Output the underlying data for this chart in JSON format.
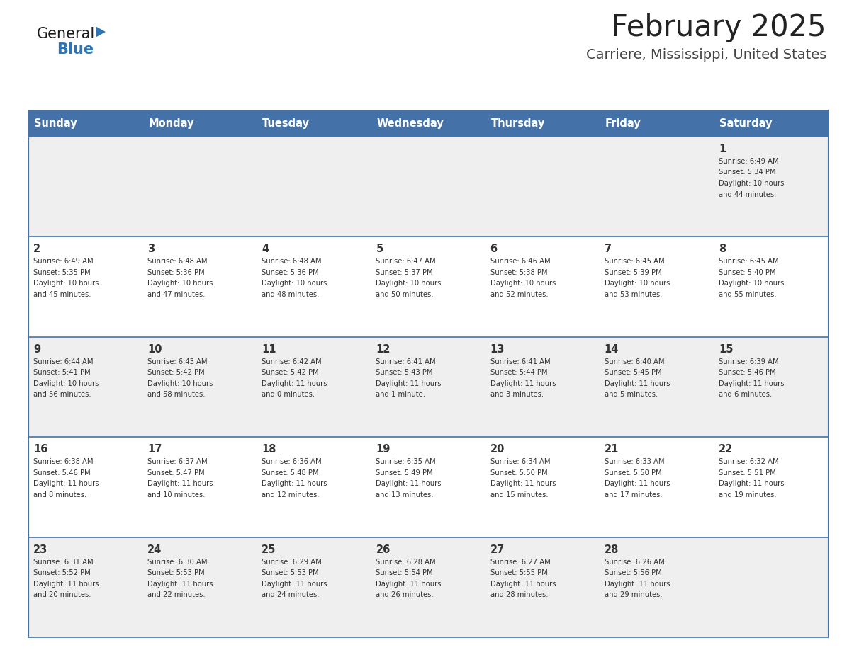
{
  "title": "February 2025",
  "subtitle": "Carriere, Mississippi, United States",
  "days_of_week": [
    "Sunday",
    "Monday",
    "Tuesday",
    "Wednesday",
    "Thursday",
    "Friday",
    "Saturday"
  ],
  "header_bg": "#4472a8",
  "header_text_color": "#ffffff",
  "row_bg_even": "#efefef",
  "row_bg_odd": "#ffffff",
  "separator_color": "#4472a8",
  "text_color": "#333333",
  "day_num_color": "#333333",
  "calendar": [
    [
      null,
      null,
      null,
      null,
      null,
      null,
      {
        "day": 1,
        "sunrise": "6:49 AM",
        "sunset": "5:34 PM",
        "daylight_line1": "Daylight: 10 hours",
        "daylight_line2": "and 44 minutes."
      }
    ],
    [
      {
        "day": 2,
        "sunrise": "6:49 AM",
        "sunset": "5:35 PM",
        "daylight_line1": "Daylight: 10 hours",
        "daylight_line2": "and 45 minutes."
      },
      {
        "day": 3,
        "sunrise": "6:48 AM",
        "sunset": "5:36 PM",
        "daylight_line1": "Daylight: 10 hours",
        "daylight_line2": "and 47 minutes."
      },
      {
        "day": 4,
        "sunrise": "6:48 AM",
        "sunset": "5:36 PM",
        "daylight_line1": "Daylight: 10 hours",
        "daylight_line2": "and 48 minutes."
      },
      {
        "day": 5,
        "sunrise": "6:47 AM",
        "sunset": "5:37 PM",
        "daylight_line1": "Daylight: 10 hours",
        "daylight_line2": "and 50 minutes."
      },
      {
        "day": 6,
        "sunrise": "6:46 AM",
        "sunset": "5:38 PM",
        "daylight_line1": "Daylight: 10 hours",
        "daylight_line2": "and 52 minutes."
      },
      {
        "day": 7,
        "sunrise": "6:45 AM",
        "sunset": "5:39 PM",
        "daylight_line1": "Daylight: 10 hours",
        "daylight_line2": "and 53 minutes."
      },
      {
        "day": 8,
        "sunrise": "6:45 AM",
        "sunset": "5:40 PM",
        "daylight_line1": "Daylight: 10 hours",
        "daylight_line2": "and 55 minutes."
      }
    ],
    [
      {
        "day": 9,
        "sunrise": "6:44 AM",
        "sunset": "5:41 PM",
        "daylight_line1": "Daylight: 10 hours",
        "daylight_line2": "and 56 minutes."
      },
      {
        "day": 10,
        "sunrise": "6:43 AM",
        "sunset": "5:42 PM",
        "daylight_line1": "Daylight: 10 hours",
        "daylight_line2": "and 58 minutes."
      },
      {
        "day": 11,
        "sunrise": "6:42 AM",
        "sunset": "5:42 PM",
        "daylight_line1": "Daylight: 11 hours",
        "daylight_line2": "and 0 minutes."
      },
      {
        "day": 12,
        "sunrise": "6:41 AM",
        "sunset": "5:43 PM",
        "daylight_line1": "Daylight: 11 hours",
        "daylight_line2": "and 1 minute."
      },
      {
        "day": 13,
        "sunrise": "6:41 AM",
        "sunset": "5:44 PM",
        "daylight_line1": "Daylight: 11 hours",
        "daylight_line2": "and 3 minutes."
      },
      {
        "day": 14,
        "sunrise": "6:40 AM",
        "sunset": "5:45 PM",
        "daylight_line1": "Daylight: 11 hours",
        "daylight_line2": "and 5 minutes."
      },
      {
        "day": 15,
        "sunrise": "6:39 AM",
        "sunset": "5:46 PM",
        "daylight_line1": "Daylight: 11 hours",
        "daylight_line2": "and 6 minutes."
      }
    ],
    [
      {
        "day": 16,
        "sunrise": "6:38 AM",
        "sunset": "5:46 PM",
        "daylight_line1": "Daylight: 11 hours",
        "daylight_line2": "and 8 minutes."
      },
      {
        "day": 17,
        "sunrise": "6:37 AM",
        "sunset": "5:47 PM",
        "daylight_line1": "Daylight: 11 hours",
        "daylight_line2": "and 10 minutes."
      },
      {
        "day": 18,
        "sunrise": "6:36 AM",
        "sunset": "5:48 PM",
        "daylight_line1": "Daylight: 11 hours",
        "daylight_line2": "and 12 minutes."
      },
      {
        "day": 19,
        "sunrise": "6:35 AM",
        "sunset": "5:49 PM",
        "daylight_line1": "Daylight: 11 hours",
        "daylight_line2": "and 13 minutes."
      },
      {
        "day": 20,
        "sunrise": "6:34 AM",
        "sunset": "5:50 PM",
        "daylight_line1": "Daylight: 11 hours",
        "daylight_line2": "and 15 minutes."
      },
      {
        "day": 21,
        "sunrise": "6:33 AM",
        "sunset": "5:50 PM",
        "daylight_line1": "Daylight: 11 hours",
        "daylight_line2": "and 17 minutes."
      },
      {
        "day": 22,
        "sunrise": "6:32 AM",
        "sunset": "5:51 PM",
        "daylight_line1": "Daylight: 11 hours",
        "daylight_line2": "and 19 minutes."
      }
    ],
    [
      {
        "day": 23,
        "sunrise": "6:31 AM",
        "sunset": "5:52 PM",
        "daylight_line1": "Daylight: 11 hours",
        "daylight_line2": "and 20 minutes."
      },
      {
        "day": 24,
        "sunrise": "6:30 AM",
        "sunset": "5:53 PM",
        "daylight_line1": "Daylight: 11 hours",
        "daylight_line2": "and 22 minutes."
      },
      {
        "day": 25,
        "sunrise": "6:29 AM",
        "sunset": "5:53 PM",
        "daylight_line1": "Daylight: 11 hours",
        "daylight_line2": "and 24 minutes."
      },
      {
        "day": 26,
        "sunrise": "6:28 AM",
        "sunset": "5:54 PM",
        "daylight_line1": "Daylight: 11 hours",
        "daylight_line2": "and 26 minutes."
      },
      {
        "day": 27,
        "sunrise": "6:27 AM",
        "sunset": "5:55 PM",
        "daylight_line1": "Daylight: 11 hours",
        "daylight_line2": "and 28 minutes."
      },
      {
        "day": 28,
        "sunrise": "6:26 AM",
        "sunset": "5:56 PM",
        "daylight_line1": "Daylight: 11 hours",
        "daylight_line2": "and 29 minutes."
      },
      null
    ]
  ],
  "logo_text_general": "General",
  "logo_text_blue": "Blue",
  "logo_color_general": "#1a1a1a",
  "logo_color_blue": "#2e75b6",
  "logo_triangle_color": "#2e75b6"
}
